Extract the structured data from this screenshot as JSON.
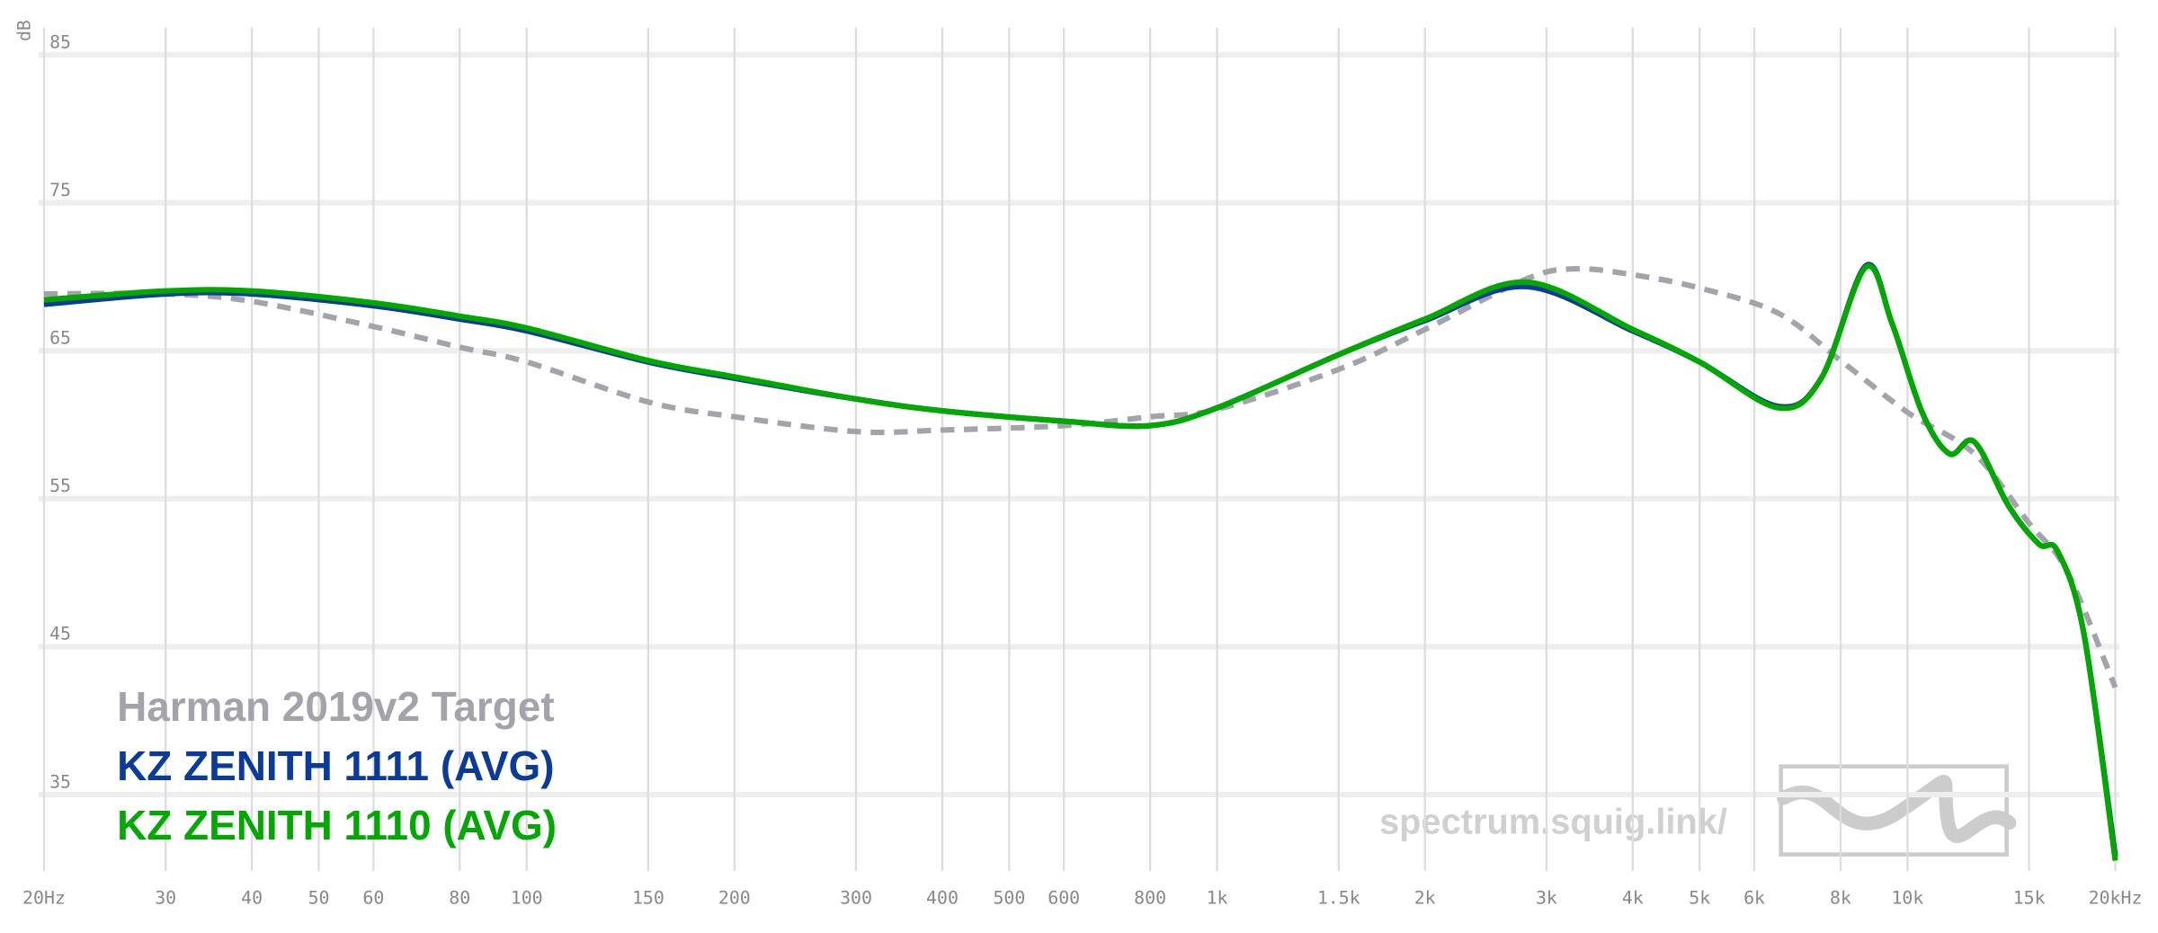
{
  "chart_data": {
    "type": "line",
    "y_label": "dB",
    "log_x": true,
    "grid": true,
    "legend": "bottom-left",
    "watermark": "spectrum.squig.link/",
    "xlim": [
      20,
      20000
    ],
    "ylim": [
      29,
      86
    ],
    "xticks": [
      {
        "value": 20,
        "label": "20Hz"
      },
      30,
      40,
      50,
      60,
      80,
      100,
      150,
      200,
      300,
      400,
      500,
      600,
      800,
      {
        "value": 1000,
        "label": "1k"
      },
      {
        "value": 1500,
        "label": "1.5k"
      },
      {
        "value": 2000,
        "label": "2k"
      },
      {
        "value": 3000,
        "label": "3k"
      },
      {
        "value": 4000,
        "label": "4k"
      },
      {
        "value": 5000,
        "label": "5k"
      },
      {
        "value": 6000,
        "label": "6k"
      },
      {
        "value": 8000,
        "label": "8k"
      },
      {
        "value": 10000,
        "label": "10k"
      },
      {
        "value": 15000,
        "label": "15k"
      },
      {
        "value": 20000,
        "label": "20kHz"
      }
    ],
    "yticks": [
      35,
      45,
      55,
      65,
      75,
      85
    ],
    "series": [
      {
        "name": "Harman 2019v2 Target",
        "color": "#a3a3ab",
        "dashed": true,
        "x": [
          20,
          30,
          40,
          60,
          80,
          100,
          150,
          200,
          300,
          400,
          600,
          800,
          1000,
          1500,
          2000,
          2800,
          3300,
          4000,
          5000,
          6500,
          8000,
          10000,
          12500,
          15000,
          17000,
          20000
        ],
        "values": [
          68.0,
          68.0,
          67.5,
          65.8,
          64.4,
          63.4,
          60.7,
          59.7,
          58.7,
          58.8,
          59.1,
          59.7,
          60.2,
          62.9,
          65.6,
          69.0,
          69.7,
          69.3,
          68.4,
          66.7,
          63.5,
          60.0,
          57.2,
          52.5,
          49.3,
          41.4
        ]
      },
      {
        "name": "KZ ZENITH 1111 (AVG)",
        "color": "#0a3a9a",
        "x": [
          20,
          30,
          40,
          60,
          80,
          100,
          150,
          200,
          300,
          400,
          600,
          800,
          1000,
          1500,
          2000,
          2800,
          4000,
          5000,
          6500,
          7500,
          8700,
          9500,
          10500,
          11500,
          12500,
          14000,
          15500,
          16500,
          18000,
          20000
        ],
        "values": [
          67.3,
          68.0,
          68.0,
          67.2,
          66.3,
          65.5,
          63.4,
          62.3,
          60.9,
          60.1,
          59.4,
          59.1,
          60.3,
          63.9,
          66.2,
          68.5,
          65.5,
          63.4,
          60.4,
          62.3,
          69.9,
          66.0,
          60.0,
          57.2,
          58.0,
          53.7,
          51.1,
          50.6,
          45.1,
          30.0
        ]
      },
      {
        "name": "KZ ZENITH 1110 (AVG)",
        "color": "#00a800",
        "x": [
          20,
          30,
          40,
          60,
          80,
          100,
          150,
          200,
          300,
          400,
          600,
          800,
          1000,
          1500,
          2000,
          2800,
          4000,
          5000,
          6500,
          7500,
          8700,
          9500,
          10500,
          11500,
          12500,
          14000,
          15500,
          16500,
          18000,
          20000
        ],
        "values": [
          67.6,
          68.2,
          68.2,
          67.4,
          66.5,
          65.7,
          63.5,
          62.4,
          60.9,
          60.1,
          59.4,
          59.1,
          60.3,
          63.9,
          66.3,
          68.8,
          65.6,
          63.4,
          60.3,
          62.3,
          69.8,
          66.0,
          60.0,
          57.2,
          58.0,
          53.7,
          51.1,
          50.6,
          45.1,
          29.7
        ]
      }
    ]
  }
}
